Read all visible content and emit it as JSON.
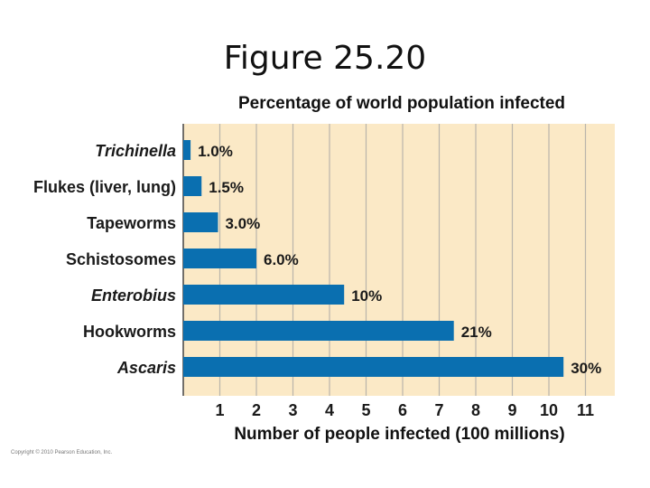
{
  "slide": {
    "title": "Figure 25.20",
    "copyright": "Copyright © 2010 Pearson Education, Inc."
  },
  "chart_data": {
    "type": "bar",
    "orientation": "horizontal",
    "title": "Percentage of world population infected",
    "xlabel": "Number of people infected (100 millions)",
    "ylabel": "",
    "categories": [
      "Trichinella",
      "Flukes (liver, lung)",
      "Tapeworms",
      "Schistosomes",
      "Enterobius",
      "Hookworms",
      "Ascaris"
    ],
    "italic_categories": [
      "Trichinella",
      "Enterobius",
      "Ascaris"
    ],
    "values": [
      0.2,
      0.5,
      0.95,
      2.0,
      4.4,
      7.4,
      10.4
    ],
    "data_labels": [
      "1.0%",
      "1.5%",
      "3.0%",
      "6.0%",
      "10%",
      "21%",
      "30%"
    ],
    "xticks": [
      "1",
      "2",
      "3",
      "4",
      "5",
      "6",
      "7",
      "8",
      "9",
      "10",
      "11"
    ],
    "xlim": [
      0,
      11.8
    ],
    "grid": true,
    "colors": {
      "bar": "#0a6fb0",
      "plot_background": "#fbe9c6",
      "grid": "#b9b4ab"
    }
  }
}
